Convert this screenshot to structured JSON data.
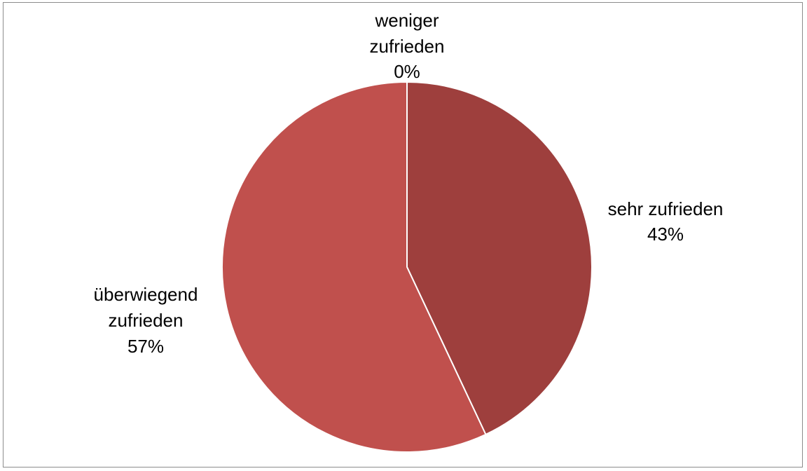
{
  "chart_data": {
    "type": "pie",
    "title": "",
    "start_angle_deg": 0,
    "direction": "clockwise",
    "slices": [
      {
        "label": "sehr zufrieden",
        "value": 43,
        "display": "43%",
        "color": "#9E3F3D"
      },
      {
        "label": "überwiegend zufrieden",
        "value": 57,
        "display": "57%",
        "color": "#C0504D"
      },
      {
        "label": "weniger zufrieden",
        "value": 0,
        "display": "0%",
        "color": "#D8807C"
      }
    ],
    "legend": "none",
    "data_labels": "outside"
  }
}
